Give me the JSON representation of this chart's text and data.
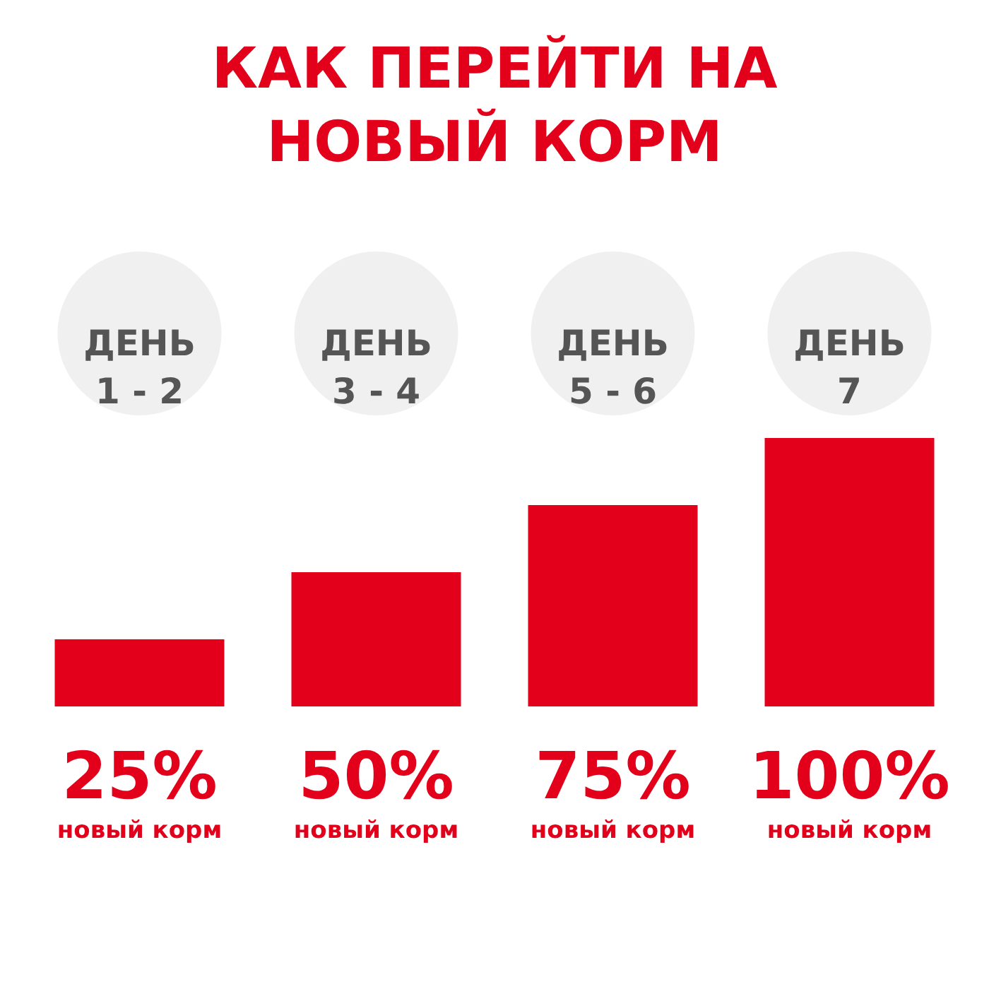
{
  "chart_data": {
    "type": "bar",
    "title": "КАК ПЕРЕЙТИ НА\nНОВЫЙ КОРМ",
    "categories": [
      "ДЕНЬ\n1 - 2",
      "ДЕНЬ\n3 - 4",
      "ДЕНЬ\n5 - 6",
      "ДЕНЬ\n7"
    ],
    "values": [
      25,
      50,
      75,
      100
    ],
    "value_labels": [
      "25%\nновый корм",
      "50%\nновый корм",
      "75%\nновый корм",
      "100%\nновый корм"
    ],
    "color": "#e2001a"
  }
}
